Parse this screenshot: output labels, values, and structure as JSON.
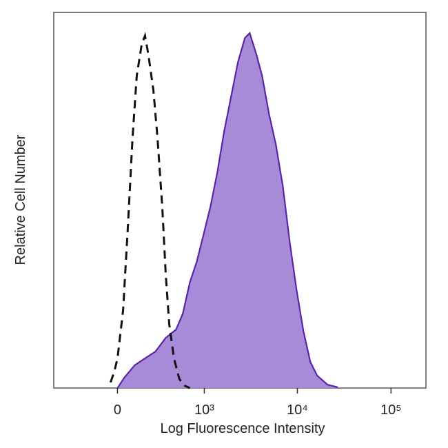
{
  "chart_data": {
    "type": "histogram-overlay",
    "xlabel": "Log Fluorescence Intensity",
    "ylabel": "Relative Cell Number",
    "xscale": "biexponential",
    "xlim": [
      -550,
      236000
    ],
    "xticks": [
      0,
      {
        "value": 1000,
        "label": "10³"
      },
      {
        "value": 10000,
        "label": "10⁴"
      },
      {
        "value": 100000,
        "label": "10⁵"
      }
    ],
    "ylim": [
      0,
      100
    ],
    "series": [
      {
        "color": "#5b23a6",
        "fill": "#a88bd8",
        "line_style": "solid",
        "x": [
          0,
          41,
          105,
          175,
          258,
          357,
          479,
          574,
          690,
          824,
          982,
          1167,
          1387,
          1647,
          1954,
          2316,
          2745,
          3092,
          3665,
          4198,
          4978,
          5892,
          6984,
          8268,
          9792,
          11592,
          13728,
          16272,
          20976,
          27048
        ],
        "values": [
          0,
          2.8,
          6.1,
          7.9,
          9.7,
          13.4,
          15.6,
          19.8,
          28.1,
          33.6,
          40.9,
          48.3,
          57.4,
          68.4,
          77.6,
          86.8,
          93.2,
          94.5,
          88.6,
          83.1,
          73.0,
          64.8,
          53.8,
          39.1,
          26.2,
          15.2,
          7.0,
          3.3,
          0.9,
          0.2
        ]
      },
      {
        "color": "#111111",
        "line_style": "dashed",
        "x": [
          -41,
          -20,
          0,
          33,
          62,
          91,
          118,
          151,
          175,
          201,
          240,
          276,
          321,
          357,
          394,
          451,
          523,
          607,
          690
        ],
        "values": [
          1.5,
          4.2,
          7.9,
          20.7,
          42.8,
          66.6,
          83.1,
          91.4,
          93.8,
          88.6,
          79.4,
          66.6,
          48.3,
          29.9,
          17.1,
          7.9,
          2.4,
          0.6,
          0
        ]
      }
    ]
  }
}
